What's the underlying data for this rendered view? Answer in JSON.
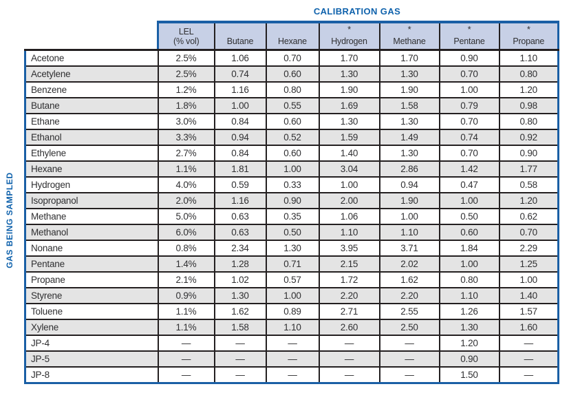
{
  "title": "CALIBRATION GAS",
  "side_label": "GAS BEING SAMPLED",
  "table": {
    "star_symbol": "*",
    "empty_value": "—",
    "columns": [
      {
        "label": "LEL",
        "sublabel": "(% vol)",
        "starred": false
      },
      {
        "label": "Butane",
        "starred": false
      },
      {
        "label": "Hexane",
        "starred": false
      },
      {
        "label": "Hydrogen",
        "starred": true
      },
      {
        "label": "Methane",
        "starred": true
      },
      {
        "label": "Pentane",
        "starred": true
      },
      {
        "label": "Propane",
        "starred": true
      }
    ],
    "rows": [
      {
        "gas": "Acetone",
        "values": [
          "2.5%",
          "1.06",
          "0.70",
          "1.70",
          "1.70",
          "0.90",
          "1.10"
        ]
      },
      {
        "gas": "Acetylene",
        "values": [
          "2.5%",
          "0.74",
          "0.60",
          "1.30",
          "1.30",
          "0.70",
          "0.80"
        ]
      },
      {
        "gas": "Benzene",
        "values": [
          "1.2%",
          "1.16",
          "0.80",
          "1.90",
          "1.90",
          "1.00",
          "1.20"
        ]
      },
      {
        "gas": "Butane",
        "values": [
          "1.8%",
          "1.00",
          "0.55",
          "1.69",
          "1.58",
          "0.79",
          "0.98"
        ]
      },
      {
        "gas": "Ethane",
        "values": [
          "3.0%",
          "0.84",
          "0.60",
          "1.30",
          "1.30",
          "0.70",
          "0.80"
        ]
      },
      {
        "gas": "Ethanol",
        "values": [
          "3.3%",
          "0.94",
          "0.52",
          "1.59",
          "1.49",
          "0.74",
          "0.92"
        ]
      },
      {
        "gas": "Ethylene",
        "values": [
          "2.7%",
          "0.84",
          "0.60",
          "1.40",
          "1.30",
          "0.70",
          "0.90"
        ]
      },
      {
        "gas": "Hexane",
        "values": [
          "1.1%",
          "1.81",
          "1.00",
          "3.04",
          "2.86",
          "1.42",
          "1.77"
        ]
      },
      {
        "gas": "Hydrogen",
        "values": [
          "4.0%",
          "0.59",
          "0.33",
          "1.00",
          "0.94",
          "0.47",
          "0.58"
        ]
      },
      {
        "gas": "Isopropanol",
        "values": [
          "2.0%",
          "1.16",
          "0.90",
          "2.00",
          "1.90",
          "1.00",
          "1.20"
        ]
      },
      {
        "gas": "Methane",
        "values": [
          "5.0%",
          "0.63",
          "0.35",
          "1.06",
          "1.00",
          "0.50",
          "0.62"
        ]
      },
      {
        "gas": "Methanol",
        "values": [
          "6.0%",
          "0.63",
          "0.50",
          "1.10",
          "1.10",
          "0.60",
          "0.70"
        ]
      },
      {
        "gas": "Nonane",
        "values": [
          "0.8%",
          "2.34",
          "1.30",
          "3.95",
          "3.71",
          "1.84",
          "2.29"
        ]
      },
      {
        "gas": "Pentane",
        "values": [
          "1.4%",
          "1.28",
          "0.71",
          "2.15",
          "2.02",
          "1.00",
          "1.25"
        ]
      },
      {
        "gas": "Propane",
        "values": [
          "2.1%",
          "1.02",
          "0.57",
          "1.72",
          "1.62",
          "0.80",
          "1.00"
        ]
      },
      {
        "gas": "Styrene",
        "values": [
          "0.9%",
          "1.30",
          "1.00",
          "2.20",
          "2.20",
          "1.10",
          "1.40"
        ]
      },
      {
        "gas": "Toluene",
        "values": [
          "1.1%",
          "1.62",
          "0.89",
          "2.71",
          "2.55",
          "1.26",
          "1.57"
        ]
      },
      {
        "gas": "Xylene",
        "values": [
          "1.1%",
          "1.58",
          "1.10",
          "2.60",
          "2.50",
          "1.30",
          "1.60"
        ]
      },
      {
        "gas": "JP-4",
        "values": [
          "—",
          "—",
          "—",
          "—",
          "—",
          "1.20",
          "—"
        ]
      },
      {
        "gas": "JP-5",
        "values": [
          "—",
          "—",
          "—",
          "—",
          "—",
          "0.90",
          "—"
        ]
      },
      {
        "gas": "JP-8",
        "values": [
          "—",
          "—",
          "—",
          "—",
          "—",
          "1.50",
          "—"
        ]
      }
    ]
  },
  "colors": {
    "accent_blue": "#0f62ac",
    "border_blue": "#1a5fa5",
    "header_bg": "#c7d0e6",
    "stripe_gray": "#e4e4e4",
    "grid_line": "#231f20",
    "text_dark": "#2f2f31"
  }
}
